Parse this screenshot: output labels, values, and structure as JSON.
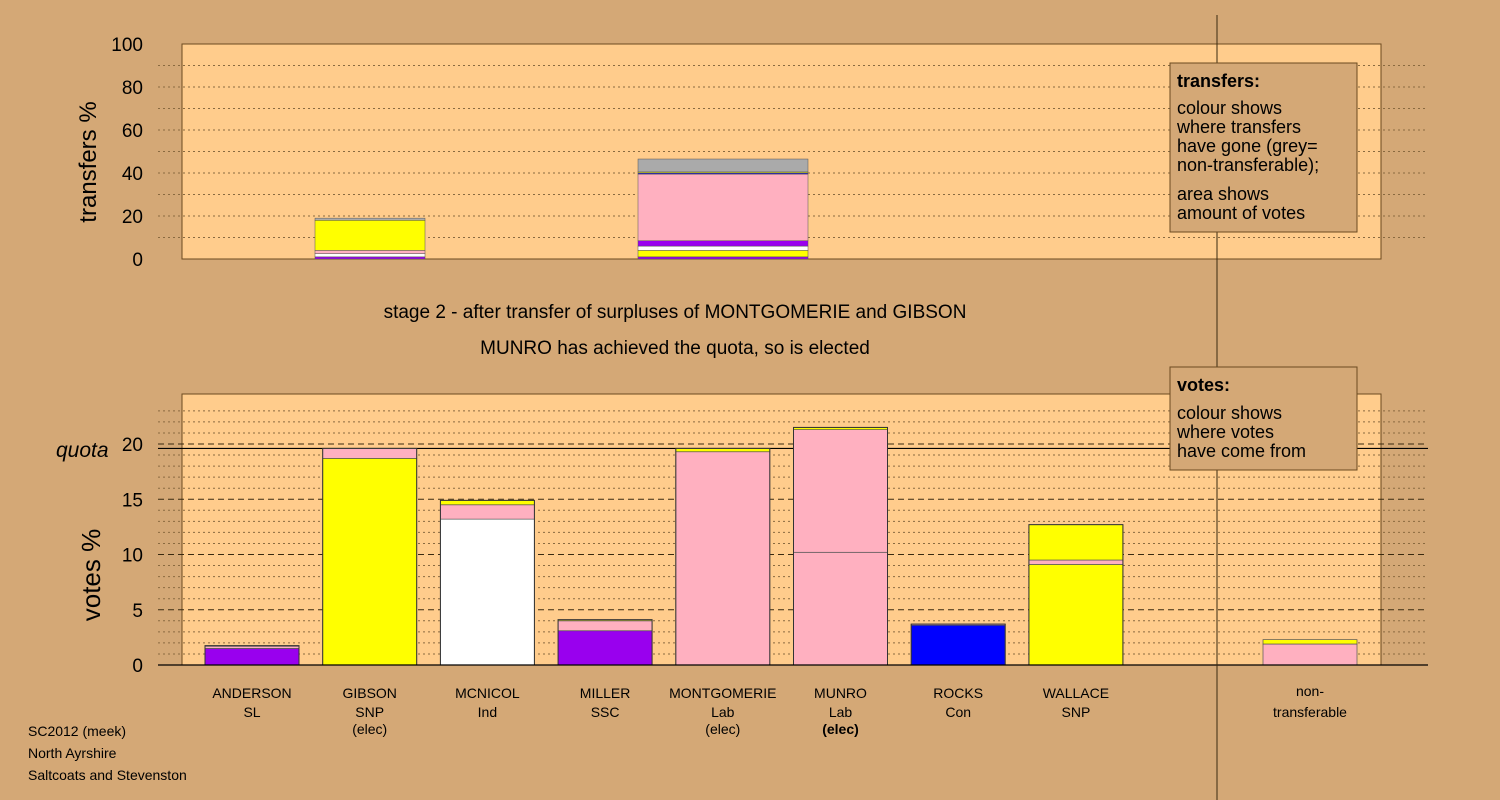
{
  "colors": {
    "background": "#d4a876",
    "plot_area": "#ffcc8c",
    "SL": "#9900ee",
    "SNP": "#ffff00",
    "Ind": "#ffffff",
    "SSC": "#9900ee",
    "Lab": "#ffb0c0",
    "Con": "#0000ff",
    "non_transferable": "#aaaaaa"
  },
  "chart_data": [
    {
      "type": "bar",
      "stacked": true,
      "ylabel": "transfers %",
      "ylim": [
        0,
        100
      ],
      "yticks": [
        0,
        20,
        40,
        60,
        80,
        100
      ],
      "grid": "dotted",
      "bars": [
        {
          "candidate": "GIBSON",
          "segments": [
            {
              "to": "SL",
              "value": 1.0
            },
            {
              "to": "Ind",
              "value": 1.5
            },
            {
              "to": "Lab",
              "value": 1.5
            },
            {
              "to": "SNP",
              "value": 14.0
            },
            {
              "to": "non_transferable",
              "value": 1.0
            }
          ]
        },
        {
          "candidate": "MONTGOMERIE",
          "segments": [
            {
              "to": "SL",
              "value": 1.0
            },
            {
              "to": "SNP",
              "value": 3.0
            },
            {
              "to": "Ind",
              "value": 2.0
            },
            {
              "to": "SSC",
              "value": 2.5
            },
            {
              "to": "Lab",
              "value": 31.0
            },
            {
              "to": "Con",
              "value": 0.5
            },
            {
              "to": "SNP",
              "value": 0.5
            },
            {
              "to": "non_transferable",
              "value": 6.0
            }
          ]
        }
      ],
      "legend": {
        "title": "transfers:",
        "lines": [
          "colour shows",
          "where transfers",
          "have gone (grey=",
          "non-transferable);"
        ],
        "lines2": [
          "area shows",
          "amount of votes"
        ]
      }
    },
    {
      "type": "bar",
      "stacked": true,
      "ylabel": "votes %",
      "ylim": [
        0,
        24
      ],
      "yticks": [
        0,
        5,
        10,
        15,
        20
      ],
      "quota": 19.6,
      "quota_label": "quota",
      "grid": "dotted",
      "bars": [
        {
          "name": "ANDERSON",
          "party": "SL",
          "elected": "",
          "segments": [
            {
              "from": "SL",
              "value": 1.5
            },
            {
              "from": "Lab",
              "value": 0.2
            },
            {
              "from": "SNP",
              "value": 0.05
            }
          ]
        },
        {
          "name": "GIBSON",
          "party": "SNP",
          "elected": "(elec)",
          "segments": [
            {
              "from": "SNP",
              "value": 18.7
            },
            {
              "from": "Lab",
              "value": 0.9
            }
          ]
        },
        {
          "name": "MCNICOL",
          "party": "Ind",
          "elected": "",
          "segments": [
            {
              "from": "Ind",
              "value": 13.2
            },
            {
              "from": "Lab",
              "value": 1.3
            },
            {
              "from": "SNP",
              "value": 0.4
            }
          ]
        },
        {
          "name": "MILLER",
          "party": "SSC",
          "elected": "",
          "segments": [
            {
              "from": "SSC",
              "value": 3.1
            },
            {
              "from": "Lab",
              "value": 0.9
            },
            {
              "from": "SNP",
              "value": 0.1
            }
          ]
        },
        {
          "name": "MONTGOMERIE",
          "party": "Lab",
          "elected": "(elec)",
          "segments": [
            {
              "from": "Lab",
              "value": 19.3
            },
            {
              "from": "SNP",
              "value": 0.3
            }
          ]
        },
        {
          "name": "MUNRO",
          "party": "Lab",
          "elected": "(elec)",
          "segments": [
            {
              "from": "Lab",
              "value": 10.2
            },
            {
              "from": "Lab",
              "value": 11.1
            },
            {
              "from": "SNP",
              "value": 0.2
            }
          ]
        },
        {
          "name": "ROCKS",
          "party": "Con",
          "elected": "",
          "segments": [
            {
              "from": "Con",
              "value": 3.6
            },
            {
              "from": "Lab",
              "value": 0.1
            }
          ]
        },
        {
          "name": "WALLACE",
          "party": "SNP",
          "elected": "",
          "segments": [
            {
              "from": "SNP",
              "value": 9.1
            },
            {
              "from": "Lab",
              "value": 0.4
            },
            {
              "from": "SNP",
              "value": 3.2
            }
          ]
        }
      ],
      "non_transferable": {
        "label_line1": "non-",
        "label_line2": "transferable",
        "segments": [
          {
            "from": "Lab",
            "value": 1.9
          },
          {
            "from": "SNP",
            "value": 0.4
          }
        ]
      },
      "legend": {
        "title": "votes:",
        "lines": [
          "colour shows",
          "where votes",
          "have come from"
        ]
      }
    }
  ],
  "stage_title": "stage 2 - after transfer of surpluses of MONTGOMERIE and GIBSON",
  "stage_subtitle": "MUNRO has achieved the quota, so is elected",
  "footer": {
    "line1": "SC2012 (meek)",
    "line2": "North Ayrshire",
    "line3": "Saltcoats and Stevenston"
  }
}
